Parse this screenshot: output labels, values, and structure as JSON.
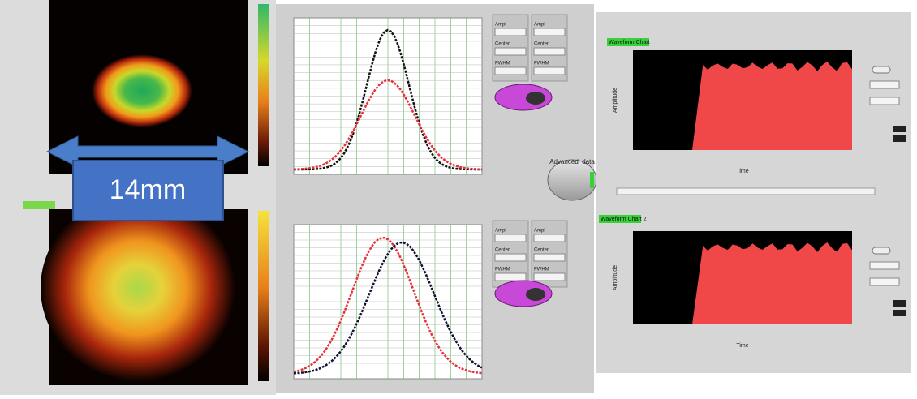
{
  "annotation": {
    "width_label": "14mm"
  },
  "profile_panel": {
    "button": "Advanced_data",
    "fit_labels": [
      "Ampl",
      "Center",
      "FWHM"
    ]
  },
  "waveform_charts": [
    {
      "title": "Waveform Chart",
      "y_label": "Amplitude",
      "x_label": "Time"
    },
    {
      "title": "Waveform Chart 2",
      "y_label": "Amplitude",
      "x_label": "Time"
    }
  ]
}
